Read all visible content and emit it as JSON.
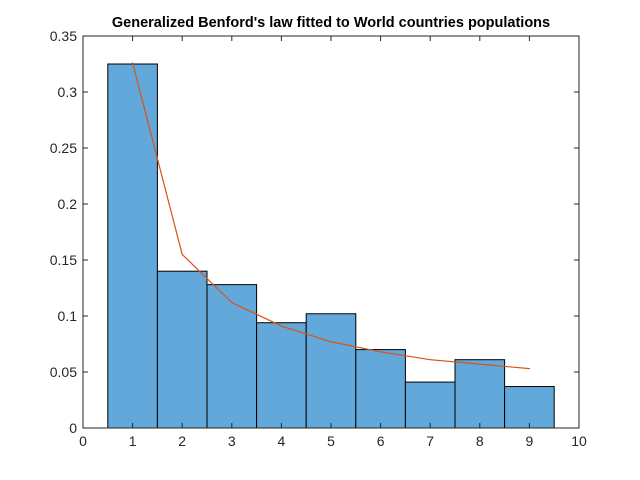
{
  "chart_data": {
    "type": "bar",
    "title": "Generalized Benford's law fitted to World countries populations",
    "xlabel": "",
    "ylabel": "",
    "xlim": [
      0,
      10
    ],
    "ylim": [
      0,
      0.35
    ],
    "xticks": [
      "0",
      "1",
      "2",
      "3",
      "4",
      "5",
      "6",
      "7",
      "8",
      "9",
      "10"
    ],
    "yticks": [
      "0",
      "0.05",
      "0.1",
      "0.15",
      "0.2",
      "0.25",
      "0.3",
      "0.35"
    ],
    "grid": false,
    "categories": [
      1,
      2,
      3,
      4,
      5,
      6,
      7,
      8,
      9
    ],
    "series": [
      {
        "type": "bar",
        "values": [
          0.325,
          0.14,
          0.128,
          0.094,
          0.102,
          0.07,
          0.041,
          0.061,
          0.037
        ],
        "color": "#62a8da"
      },
      {
        "type": "line",
        "x": [
          1,
          2,
          3,
          4,
          5,
          6,
          7,
          8,
          9
        ],
        "values": [
          0.326,
          0.155,
          0.112,
          0.091,
          0.077,
          0.068,
          0.061,
          0.057,
          0.053
        ],
        "color": "#d95319"
      }
    ]
  }
}
